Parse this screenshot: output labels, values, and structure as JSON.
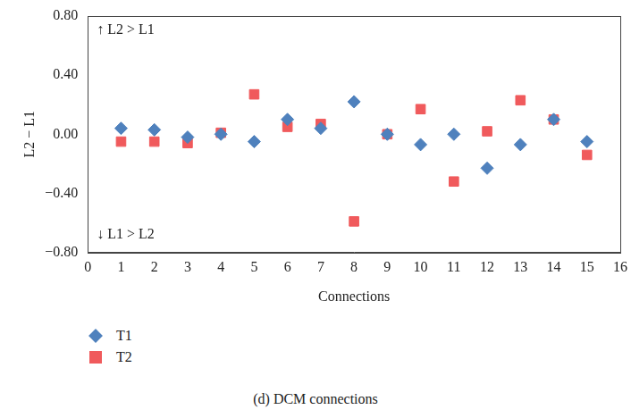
{
  "chart_data": {
    "type": "scatter",
    "caption": "(d) DCM connections",
    "x_label": "Connections",
    "y_label": "L2 − L1",
    "annotations": [
      "↑ L2 > L1",
      "↓ L1 > L2"
    ],
    "xlim": [
      0,
      16
    ],
    "xticks": [
      0,
      1,
      2,
      3,
      4,
      5,
      6,
      7,
      8,
      9,
      10,
      11,
      12,
      13,
      14,
      15,
      16
    ],
    "ylim": [
      -0.8,
      0.8
    ],
    "yticks": [
      {
        "value": -0.8,
        "label": "−0.80"
      },
      {
        "value": -0.4,
        "label": "−0.40"
      },
      {
        "value": 0,
        "label": "0.00"
      },
      {
        "value": 0.4,
        "label": "0.40"
      },
      {
        "value": 0.8,
        "label": "0.80"
      }
    ],
    "grid": false,
    "legend": "bottom",
    "series": [
      {
        "name": "T1",
        "color": "#4f81bd",
        "marker": "diamond",
        "x": [
          1,
          2,
          3,
          4,
          5,
          6,
          7,
          8,
          9,
          10,
          11,
          12,
          13,
          14,
          15
        ],
        "values": [
          0.04,
          0.03,
          -0.02,
          0.0,
          -0.05,
          0.1,
          0.04,
          0.22,
          0.0,
          -0.07,
          0.0,
          -0.23,
          -0.07,
          0.1,
          -0.05
        ]
      },
      {
        "name": "T2",
        "color": "#f05a5c",
        "marker": "square",
        "x": [
          1,
          2,
          3,
          4,
          5,
          6,
          7,
          8,
          9,
          10,
          11,
          12,
          13,
          14,
          15
        ],
        "values": [
          -0.05,
          -0.05,
          -0.06,
          0.01,
          0.27,
          0.05,
          0.07,
          -0.59,
          0.0,
          0.17,
          -0.32,
          0.02,
          0.23,
          0.1,
          -0.14
        ]
      }
    ]
  }
}
